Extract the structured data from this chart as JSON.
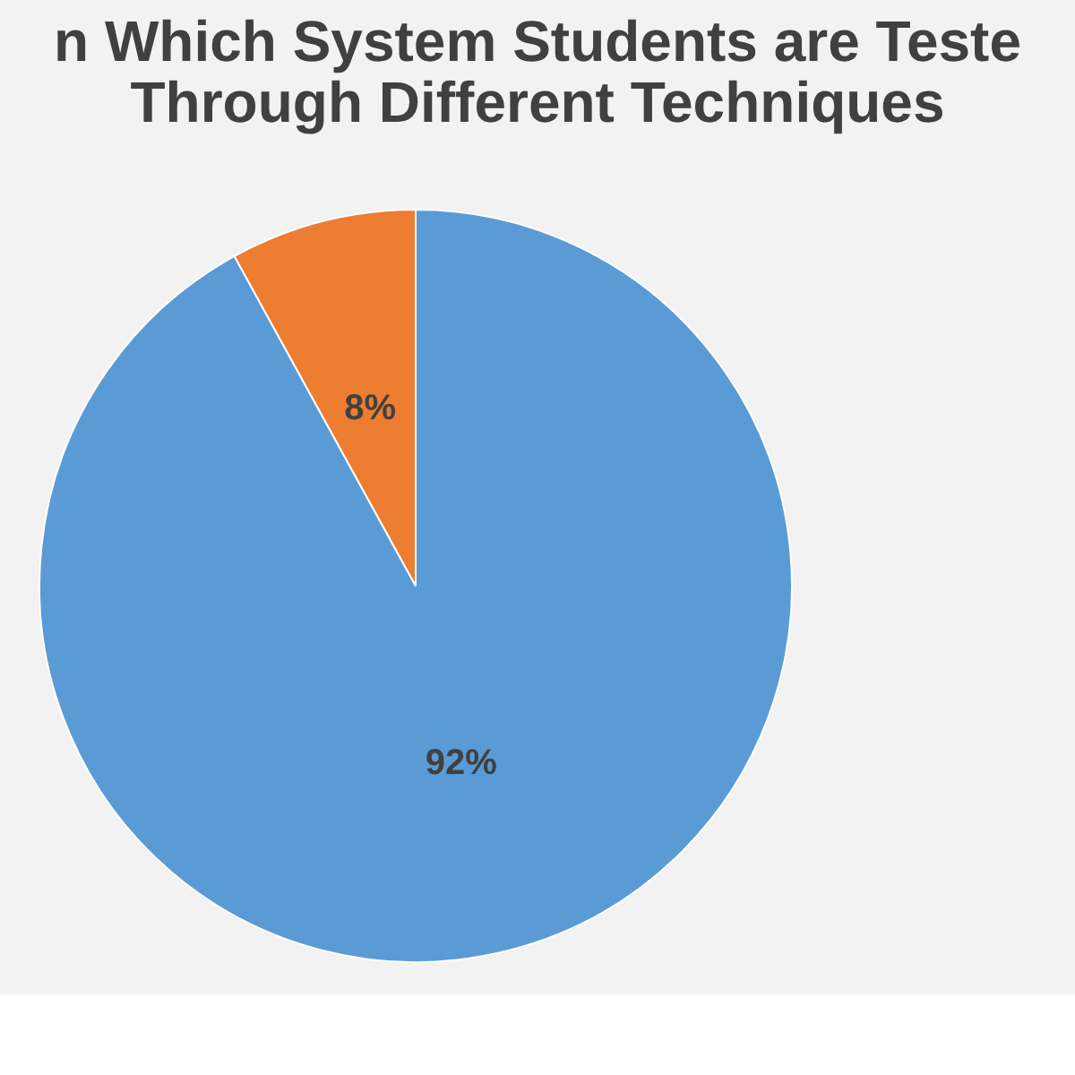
{
  "chart_data": {
    "type": "pie",
    "title": "n Which System Students are Teste\nThrough Different Techniques",
    "categories": [
      null,
      null
    ],
    "values": [
      92,
      8
    ],
    "colors": [
      "#5b9bd5",
      "#ed7d31"
    ],
    "value_labels": [
      "92%",
      "8%"
    ],
    "legend": false
  }
}
